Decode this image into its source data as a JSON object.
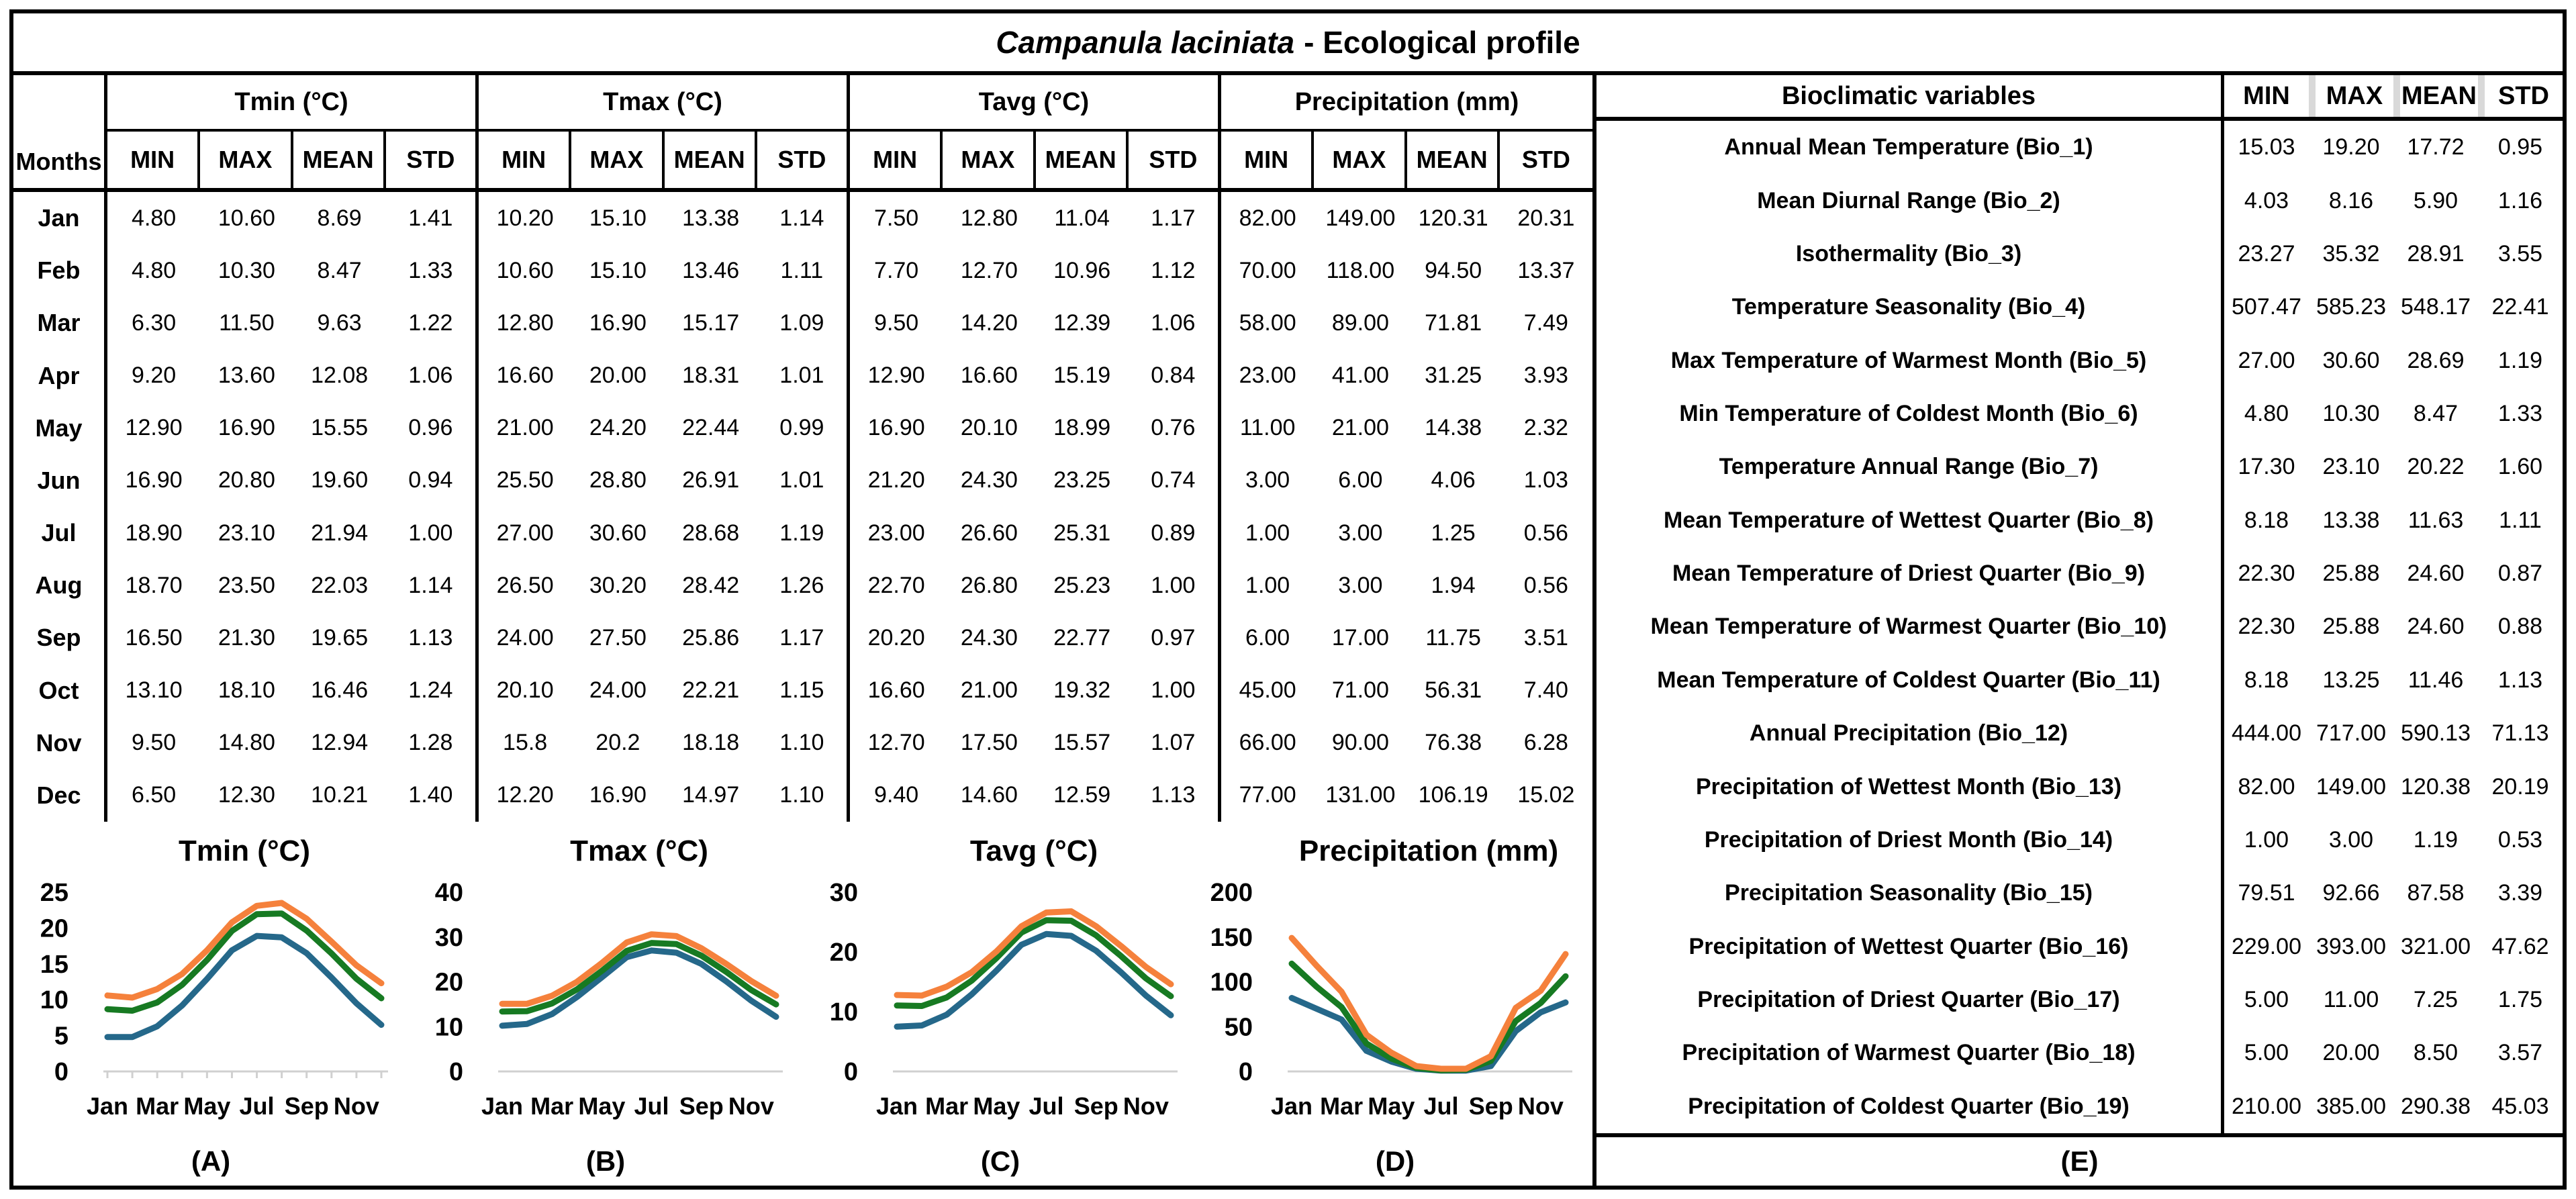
{
  "title": {
    "species": "Campanula laciniata",
    "rest": "- Ecological profile"
  },
  "monthly_table": {
    "months_label": "Months",
    "groups": [
      "Tmin (°C)",
      "Tmax (°C)",
      "Tavg (°C)",
      "Precipitation (mm)"
    ],
    "sub_headers": [
      "MIN",
      "MAX",
      "MEAN",
      "STD"
    ],
    "rows": [
      {
        "month": "Jan",
        "values": [
          "4.80",
          "10.60",
          "8.69",
          "1.41",
          "10.20",
          "15.10",
          "13.38",
          "1.14",
          "7.50",
          "12.80",
          "11.04",
          "1.17",
          "82.00",
          "149.00",
          "120.31",
          "20.31"
        ]
      },
      {
        "month": "Feb",
        "values": [
          "4.80",
          "10.30",
          "8.47",
          "1.33",
          "10.60",
          "15.10",
          "13.46",
          "1.11",
          "7.70",
          "12.70",
          "10.96",
          "1.12",
          "70.00",
          "118.00",
          "94.50",
          "13.37"
        ]
      },
      {
        "month": "Mar",
        "values": [
          "6.30",
          "11.50",
          "9.63",
          "1.22",
          "12.80",
          "16.90",
          "15.17",
          "1.09",
          "9.50",
          "14.20",
          "12.39",
          "1.06",
          "58.00",
          "89.00",
          "71.81",
          "7.49"
        ]
      },
      {
        "month": "Apr",
        "values": [
          "9.20",
          "13.60",
          "12.08",
          "1.06",
          "16.60",
          "20.00",
          "18.31",
          "1.01",
          "12.90",
          "16.60",
          "15.19",
          "0.84",
          "23.00",
          "41.00",
          "31.25",
          "3.93"
        ]
      },
      {
        "month": "May",
        "values": [
          "12.90",
          "16.90",
          "15.55",
          "0.96",
          "21.00",
          "24.20",
          "22.44",
          "0.99",
          "16.90",
          "20.10",
          "18.99",
          "0.76",
          "11.00",
          "21.00",
          "14.38",
          "2.32"
        ]
      },
      {
        "month": "Jun",
        "values": [
          "16.90",
          "20.80",
          "19.60",
          "0.94",
          "25.50",
          "28.80",
          "26.91",
          "1.01",
          "21.20",
          "24.30",
          "23.25",
          "0.74",
          "3.00",
          "6.00",
          "4.06",
          "1.03"
        ]
      },
      {
        "month": "Jul",
        "values": [
          "18.90",
          "23.10",
          "21.94",
          "1.00",
          "27.00",
          "30.60",
          "28.68",
          "1.19",
          "23.00",
          "26.60",
          "25.31",
          "0.89",
          "1.00",
          "3.00",
          "1.25",
          "0.56"
        ]
      },
      {
        "month": "Aug",
        "values": [
          "18.70",
          "23.50",
          "22.03",
          "1.14",
          "26.50",
          "30.20",
          "28.42",
          "1.26",
          "22.70",
          "26.80",
          "25.23",
          "1.00",
          "1.00",
          "3.00",
          "1.94",
          "0.56"
        ]
      },
      {
        "month": "Sep",
        "values": [
          "16.50",
          "21.30",
          "19.65",
          "1.13",
          "24.00",
          "27.50",
          "25.86",
          "1.17",
          "20.20",
          "24.30",
          "22.77",
          "0.97",
          "6.00",
          "17.00",
          "11.75",
          "3.51"
        ]
      },
      {
        "month": "Oct",
        "values": [
          "13.10",
          "18.10",
          "16.46",
          "1.24",
          "20.10",
          "24.00",
          "22.21",
          "1.15",
          "16.60",
          "21.00",
          "19.32",
          "1.00",
          "45.00",
          "71.00",
          "56.31",
          "7.40"
        ]
      },
      {
        "month": "Nov",
        "values": [
          "9.50",
          "14.80",
          "12.94",
          "1.28",
          "15.8",
          "20.2",
          "18.18",
          "1.10",
          "12.70",
          "17.50",
          "15.57",
          "1.07",
          "66.00",
          "90.00",
          "76.38",
          "6.28"
        ]
      },
      {
        "month": "Dec",
        "values": [
          "6.50",
          "12.30",
          "10.21",
          "1.40",
          "12.20",
          "16.90",
          "14.97",
          "1.10",
          "9.40",
          "14.60",
          "12.59",
          "1.13",
          "77.00",
          "131.00",
          "106.19",
          "15.02"
        ]
      }
    ]
  },
  "bioclim_table": {
    "header_name": "Bioclimatic variables",
    "header_cols": [
      "MIN",
      "MAX",
      "MEAN",
      "STD"
    ],
    "rows": [
      {
        "name": "Annual Mean Temperature (Bio_1)",
        "values": [
          "15.03",
          "19.20",
          "17.72",
          "0.95"
        ]
      },
      {
        "name": "Mean Diurnal Range (Bio_2)",
        "values": [
          "4.03",
          "8.16",
          "5.90",
          "1.16"
        ]
      },
      {
        "name": "Isothermality (Bio_3)",
        "values": [
          "23.27",
          "35.32",
          "28.91",
          "3.55"
        ]
      },
      {
        "name": "Temperature Seasonality (Bio_4)",
        "values": [
          "507.47",
          "585.23",
          "548.17",
          "22.41"
        ]
      },
      {
        "name": "Max Temperature of Warmest Month (Bio_5)",
        "values": [
          "27.00",
          "30.60",
          "28.69",
          "1.19"
        ]
      },
      {
        "name": "Min Temperature of Coldest Month (Bio_6)",
        "values": [
          "4.80",
          "10.30",
          "8.47",
          "1.33"
        ]
      },
      {
        "name": "Temperature Annual Range (Bio_7)",
        "values": [
          "17.30",
          "23.10",
          "20.22",
          "1.60"
        ]
      },
      {
        "name": "Mean Temperature of Wettest Quarter (Bio_8)",
        "values": [
          "8.18",
          "13.38",
          "11.63",
          "1.11"
        ]
      },
      {
        "name": "Mean Temperature of Driest Quarter (Bio_9)",
        "values": [
          "22.30",
          "25.88",
          "24.60",
          "0.87"
        ]
      },
      {
        "name": "Mean Temperature of Warmest Quarter (Bio_10)",
        "values": [
          "22.30",
          "25.88",
          "24.60",
          "0.88"
        ]
      },
      {
        "name": "Mean Temperature of Coldest Quarter (Bio_11)",
        "values": [
          "8.18",
          "13.25",
          "11.46",
          "1.13"
        ]
      },
      {
        "name": "Annual Precipitation (Bio_12)",
        "values": [
          "444.00",
          "717.00",
          "590.13",
          "71.13"
        ]
      },
      {
        "name": "Precipitation of Wettest Month (Bio_13)",
        "values": [
          "82.00",
          "149.00",
          "120.38",
          "20.19"
        ]
      },
      {
        "name": "Precipitation of Driest Month (Bio_14)",
        "values": [
          "1.00",
          "3.00",
          "1.19",
          "0.53"
        ]
      },
      {
        "name": "Precipitation Seasonality (Bio_15)",
        "values": [
          "79.51",
          "92.66",
          "87.58",
          "3.39"
        ]
      },
      {
        "name": "Precipitation of Wettest Quarter (Bio_16)",
        "values": [
          "229.00",
          "393.00",
          "321.00",
          "47.62"
        ]
      },
      {
        "name": "Precipitation of Driest Quarter (Bio_17)",
        "values": [
          "5.00",
          "11.00",
          "7.25",
          "1.75"
        ]
      },
      {
        "name": "Precipitation of Warmest Quarter (Bio_18)",
        "values": [
          "5.00",
          "20.00",
          "8.50",
          "3.57"
        ]
      },
      {
        "name": "Precipitation of Coldest Quarter (Bio_19)",
        "values": [
          "210.00",
          "385.00",
          "290.38",
          "45.03"
        ]
      }
    ],
    "caption": "(E)"
  },
  "colors": {
    "min_line": "#25688A",
    "mean_line": "#177A22",
    "max_line": "#F5813C",
    "axis_gray": "#D0D0D0",
    "header_separator_gray": "#D9D9D9"
  },
  "chart_data": [
    {
      "type": "line",
      "title": "Tmin (°C)",
      "caption": "(A)",
      "x": [
        "Jan",
        "Feb",
        "Mar",
        "Apr",
        "May",
        "Jun",
        "Jul",
        "Aug",
        "Sep",
        "Oct",
        "Nov",
        "Dec"
      ],
      "x_tick_labels": [
        "Jan",
        "Mar",
        "May",
        "Jul",
        "Sep",
        "Nov"
      ],
      "ylim": [
        0,
        25
      ],
      "yticks": [
        0,
        5,
        10,
        15,
        20,
        25
      ],
      "grid": false,
      "legend": "none",
      "x_axis_ticks": true,
      "series": [
        {
          "name": "MIN",
          "color": "#25688A",
          "values": [
            4.8,
            4.8,
            6.3,
            9.2,
            12.9,
            16.9,
            18.9,
            18.7,
            16.5,
            13.1,
            9.5,
            6.5
          ]
        },
        {
          "name": "MEAN",
          "color": "#177A22",
          "values": [
            8.69,
            8.47,
            9.63,
            12.08,
            15.55,
            19.6,
            21.94,
            22.03,
            19.65,
            16.46,
            12.94,
            10.21
          ]
        },
        {
          "name": "MAX",
          "color": "#F5813C",
          "values": [
            10.6,
            10.3,
            11.5,
            13.6,
            16.9,
            20.8,
            23.1,
            23.5,
            21.3,
            18.1,
            14.8,
            12.3
          ]
        }
      ]
    },
    {
      "type": "line",
      "title": "Tmax (°C)",
      "caption": "(B)",
      "x": [
        "Jan",
        "Feb",
        "Mar",
        "Apr",
        "May",
        "Jun",
        "Jul",
        "Aug",
        "Sep",
        "Oct",
        "Nov",
        "Dec"
      ],
      "x_tick_labels": [
        "Jan",
        "Mar",
        "May",
        "Jul",
        "Sep",
        "Nov"
      ],
      "ylim": [
        0,
        40
      ],
      "yticks": [
        0,
        10,
        20,
        30,
        40
      ],
      "grid": false,
      "legend": "none",
      "x_axis_ticks": false,
      "series": [
        {
          "name": "MIN",
          "color": "#25688A",
          "values": [
            10.2,
            10.6,
            12.8,
            16.6,
            21.0,
            25.5,
            27.0,
            26.5,
            24.0,
            20.1,
            15.8,
            12.2
          ]
        },
        {
          "name": "MEAN",
          "color": "#177A22",
          "values": [
            13.38,
            13.46,
            15.17,
            18.31,
            22.44,
            26.91,
            28.68,
            28.42,
            25.86,
            22.21,
            18.18,
            14.97
          ]
        },
        {
          "name": "MAX",
          "color": "#F5813C",
          "values": [
            15.1,
            15.1,
            16.9,
            20.0,
            24.2,
            28.8,
            30.6,
            30.2,
            27.5,
            24.0,
            20.2,
            16.9
          ]
        }
      ]
    },
    {
      "type": "line",
      "title": "Tavg (°C)",
      "caption": "(C)",
      "x": [
        "Jan",
        "Feb",
        "Mar",
        "Apr",
        "May",
        "Jun",
        "Jul",
        "Aug",
        "Sep",
        "Oct",
        "Nov",
        "Dec"
      ],
      "x_tick_labels": [
        "Jan",
        "Mar",
        "May",
        "Jul",
        "Sep",
        "Nov"
      ],
      "ylim": [
        0,
        30
      ],
      "yticks": [
        0,
        10,
        20,
        30
      ],
      "grid": false,
      "legend": "none",
      "x_axis_ticks": false,
      "series": [
        {
          "name": "MIN",
          "color": "#25688A",
          "values": [
            7.5,
            7.7,
            9.5,
            12.9,
            16.9,
            21.2,
            23.0,
            22.7,
            20.2,
            16.6,
            12.7,
            9.4
          ]
        },
        {
          "name": "MEAN",
          "color": "#177A22",
          "values": [
            11.04,
            10.96,
            12.39,
            15.19,
            18.99,
            23.25,
            25.31,
            25.23,
            22.77,
            19.32,
            15.57,
            12.59
          ]
        },
        {
          "name": "MAX",
          "color": "#F5813C",
          "values": [
            12.8,
            12.7,
            14.2,
            16.6,
            20.1,
            24.3,
            26.6,
            26.8,
            24.3,
            21.0,
            17.5,
            14.6
          ]
        }
      ]
    },
    {
      "type": "line",
      "title": "Precipitation (mm)",
      "caption": "(D)",
      "x": [
        "Jan",
        "Feb",
        "Mar",
        "Apr",
        "May",
        "Jun",
        "Jul",
        "Aug",
        "Sep",
        "Oct",
        "Nov",
        "Dec"
      ],
      "x_tick_labels": [
        "Jan",
        "Mar",
        "May",
        "Jul",
        "Sep",
        "Nov"
      ],
      "ylim": [
        0,
        200
      ],
      "yticks": [
        0,
        50,
        100,
        150,
        200
      ],
      "grid": false,
      "legend": "none",
      "x_axis_ticks": false,
      "series": [
        {
          "name": "MIN",
          "color": "#25688A",
          "values": [
            82,
            70,
            58,
            23,
            11,
            3,
            1,
            1,
            6,
            45,
            66,
            77
          ]
        },
        {
          "name": "MEAN",
          "color": "#177A22",
          "values": [
            120.31,
            94.5,
            71.81,
            31.25,
            14.38,
            4.06,
            1.25,
            1.94,
            11.75,
            56.31,
            76.38,
            106.19
          ]
        },
        {
          "name": "MAX",
          "color": "#F5813C",
          "values": [
            149,
            118,
            89,
            41,
            21,
            6,
            3,
            3,
            17,
            71,
            90,
            131
          ]
        }
      ]
    }
  ]
}
